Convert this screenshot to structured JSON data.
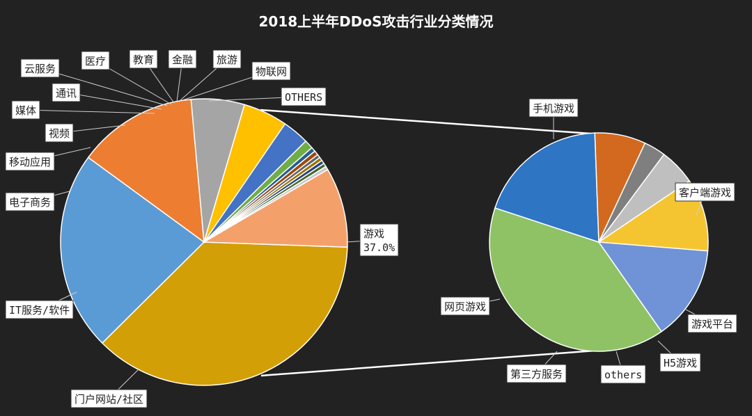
{
  "chart_data": [
    {
      "type": "pie",
      "title": "2018上半年DDoS攻击行业分类情况",
      "slices": [
        {
          "name": "游戏",
          "value": 37.0,
          "color": "#D39F06",
          "label": "游戏",
          "value_label": "37.0%"
        },
        {
          "name": "门户网站/社区",
          "value": 22.5,
          "color": "#5B9BD5",
          "label": "门户网站/社区"
        },
        {
          "name": "IT服务/软件",
          "value": 13.5,
          "color": "#ED7D31",
          "label": "IT服务/软件"
        },
        {
          "name": "电子商务",
          "value": 6.0,
          "color": "#A5A5A5",
          "label": "电子商务"
        },
        {
          "name": "移动应用",
          "value": 5.0,
          "color": "#FFC000",
          "label": "移动应用"
        },
        {
          "name": "视频",
          "value": 3.0,
          "color": "#4472C4",
          "label": "视频"
        },
        {
          "name": "媒体",
          "value": 1.0,
          "color": "#70AD47",
          "label": "媒体"
        },
        {
          "name": "通讯",
          "value": 0.5,
          "color": "#255E91",
          "label": "通讯"
        },
        {
          "name": "云服务",
          "value": 0.5,
          "color": "#9E480E",
          "label": "云服务"
        },
        {
          "name": "医疗",
          "value": 0.4,
          "color": "#636363",
          "label": "医疗"
        },
        {
          "name": "教育",
          "value": 0.4,
          "color": "#997300",
          "label": "教育"
        },
        {
          "name": "金融",
          "value": 0.4,
          "color": "#264478",
          "label": "金融"
        },
        {
          "name": "旅游",
          "value": 0.4,
          "color": "#43682B",
          "label": "旅游"
        },
        {
          "name": "物联网",
          "value": 0.4,
          "color": "#C9C9C9",
          "label": "物联网"
        },
        {
          "name": "OTHERS",
          "value": 9.0,
          "color": "#F4A06B",
          "label": "OTHERS"
        }
      ]
    },
    {
      "type": "pie",
      "slices": [
        {
          "name": "手机游戏",
          "value": 37.0,
          "color": "#8FC265",
          "label": "手机游戏"
        },
        {
          "name": "客户端游戏",
          "value": 18.0,
          "color": "#2E75C4",
          "label": "客户端游戏"
        },
        {
          "name": "游戏平台",
          "value": 7.0,
          "color": "#D2691E",
          "label": "游戏平台"
        },
        {
          "name": "H5游戏",
          "value": 3.0,
          "color": "#7F7F7F",
          "label": "H5游戏"
        },
        {
          "name": "others",
          "value": 5.0,
          "color": "#BFBFBF",
          "label": "others"
        },
        {
          "name": "第三方服务",
          "value": 10.0,
          "color": "#F5C531",
          "label": "第三方服务"
        },
        {
          "name": "网页游戏",
          "value": 13.0,
          "color": "#6F93D6",
          "label": "网页游戏"
        }
      ]
    }
  ]
}
